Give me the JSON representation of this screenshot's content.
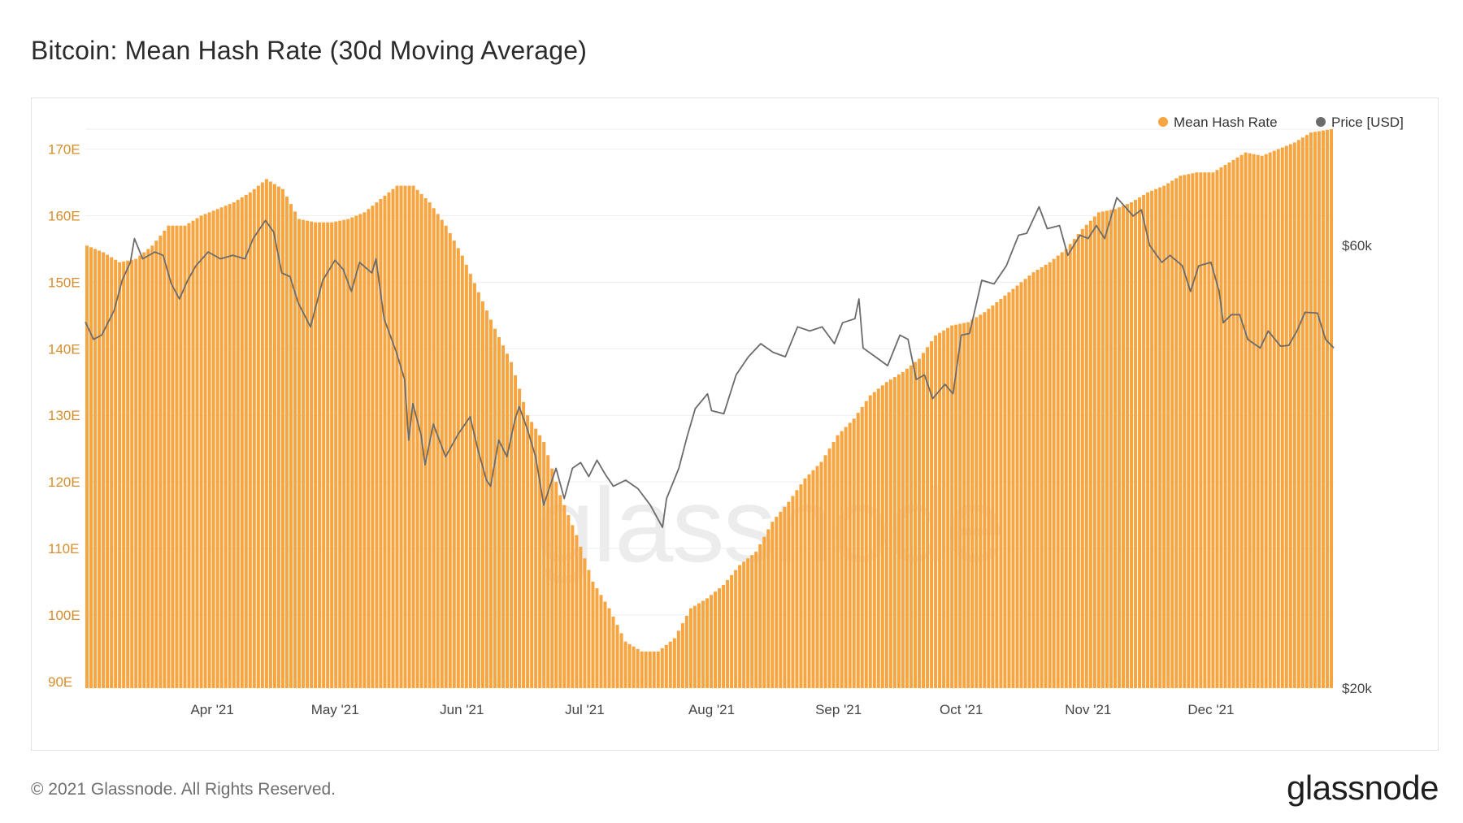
{
  "title": "Bitcoin: Mean Hash Rate (30d Moving Average)",
  "footer": {
    "copyright": "© 2021 Glassnode. All Rights Reserved.",
    "logo": "glassnode"
  },
  "watermark": "glassnode",
  "colors": {
    "hash_rate": "#F7A541",
    "price": "#6b6b6b",
    "left_axis_text": "#D88D2B",
    "right_axis_text": "#444444",
    "grid": "#eeeeee"
  },
  "chart_data": {
    "type": "bar",
    "title": "Bitcoin: Mean Hash Rate (30d Moving Average)",
    "x_range": [
      "2021-03-01",
      "2021-12-31"
    ],
    "x_ticks": [
      {
        "date": "2021-04-01",
        "label": "Apr '21"
      },
      {
        "date": "2021-05-01",
        "label": "May '21"
      },
      {
        "date": "2021-06-01",
        "label": "Jun '21"
      },
      {
        "date": "2021-07-01",
        "label": "Jul '21"
      },
      {
        "date": "2021-08-01",
        "label": "Aug '21"
      },
      {
        "date": "2021-09-01",
        "label": "Sep '21"
      },
      {
        "date": "2021-10-01",
        "label": "Oct '21"
      },
      {
        "date": "2021-11-01",
        "label": "Nov '21"
      },
      {
        "date": "2021-12-01",
        "label": "Dec '21"
      }
    ],
    "left_axis": {
      "unit": "E",
      "ylim": [
        89,
        173
      ],
      "ticks": [
        {
          "value": 90,
          "label": "90E"
        },
        {
          "value": 100,
          "label": "100E"
        },
        {
          "value": 110,
          "label": "110E"
        },
        {
          "value": 120,
          "label": "120E"
        },
        {
          "value": 130,
          "label": "130E"
        },
        {
          "value": 140,
          "label": "140E"
        },
        {
          "value": 150,
          "label": "150E"
        },
        {
          "value": 160,
          "label": "160E"
        },
        {
          "value": 170,
          "label": "170E"
        }
      ]
    },
    "right_axis": {
      "scale": "log",
      "ylim": [
        20000,
        80000
      ],
      "ticks": [
        {
          "value": 20000,
          "label": "$20k"
        },
        {
          "value": 60000,
          "label": "$60k"
        }
      ]
    },
    "legend": {
      "position": "top-right",
      "items": [
        {
          "label": "Mean Hash Rate",
          "color": "#F7A541"
        },
        {
          "label": "Price [USD]",
          "color": "#6b6b6b"
        }
      ]
    },
    "series": [
      {
        "name": "Mean Hash Rate",
        "type": "bar",
        "axis": "left",
        "points": [
          [
            "2021-03-01",
            155.5
          ],
          [
            "2021-03-05",
            154.5
          ],
          [
            "2021-03-09",
            153.0
          ],
          [
            "2021-03-13",
            153.5
          ],
          [
            "2021-03-17",
            155.5
          ],
          [
            "2021-03-21",
            158.5
          ],
          [
            "2021-03-25",
            158.5
          ],
          [
            "2021-03-29",
            160.0
          ],
          [
            "2021-04-02",
            161.0
          ],
          [
            "2021-04-06",
            162.0
          ],
          [
            "2021-04-10",
            163.5
          ],
          [
            "2021-04-14",
            165.5
          ],
          [
            "2021-04-18",
            164.0
          ],
          [
            "2021-04-22",
            159.5
          ],
          [
            "2021-04-26",
            159.0
          ],
          [
            "2021-04-30",
            159.0
          ],
          [
            "2021-05-04",
            159.5
          ],
          [
            "2021-05-08",
            160.5
          ],
          [
            "2021-05-12",
            162.5
          ],
          [
            "2021-05-16",
            164.5
          ],
          [
            "2021-05-20",
            164.5
          ],
          [
            "2021-05-24",
            162.0
          ],
          [
            "2021-05-28",
            158.5
          ],
          [
            "2021-06-01",
            154.0
          ],
          [
            "2021-06-05",
            148.5
          ],
          [
            "2021-06-09",
            143.0
          ],
          [
            "2021-06-13",
            138.0
          ],
          [
            "2021-06-17",
            130.0
          ],
          [
            "2021-06-21",
            126.0
          ],
          [
            "2021-06-25",
            118.0
          ],
          [
            "2021-06-29",
            112.0
          ],
          [
            "2021-07-03",
            105.0
          ],
          [
            "2021-07-07",
            101.0
          ],
          [
            "2021-07-11",
            96.0
          ],
          [
            "2021-07-15",
            94.5
          ],
          [
            "2021-07-19",
            94.5
          ],
          [
            "2021-07-23",
            96.5
          ],
          [
            "2021-07-27",
            101.0
          ],
          [
            "2021-07-31",
            102.5
          ],
          [
            "2021-08-04",
            104.5
          ],
          [
            "2021-08-08",
            107.5
          ],
          [
            "2021-08-12",
            109.5
          ],
          [
            "2021-08-16",
            114.0
          ],
          [
            "2021-08-20",
            117.0
          ],
          [
            "2021-08-24",
            120.5
          ],
          [
            "2021-08-28",
            123.0
          ],
          [
            "2021-09-01",
            127.0
          ],
          [
            "2021-09-05",
            129.5
          ],
          [
            "2021-09-09",
            133.0
          ],
          [
            "2021-09-13",
            135.0
          ],
          [
            "2021-09-17",
            136.5
          ],
          [
            "2021-09-21",
            138.5
          ],
          [
            "2021-09-25",
            142.0
          ],
          [
            "2021-09-29",
            143.5
          ],
          [
            "2021-10-03",
            144.0
          ],
          [
            "2021-10-07",
            145.5
          ],
          [
            "2021-10-11",
            147.5
          ],
          [
            "2021-10-15",
            149.5
          ],
          [
            "2021-10-19",
            151.5
          ],
          [
            "2021-10-23",
            153.0
          ],
          [
            "2021-10-27",
            155.0
          ],
          [
            "2021-10-31",
            158.0
          ],
          [
            "2021-11-04",
            160.5
          ],
          [
            "2021-11-08",
            161.0
          ],
          [
            "2021-11-12",
            162.0
          ],
          [
            "2021-11-16",
            163.5
          ],
          [
            "2021-11-20",
            164.5
          ],
          [
            "2021-11-24",
            166.0
          ],
          [
            "2021-11-28",
            166.5
          ],
          [
            "2021-12-02",
            166.5
          ],
          [
            "2021-12-06",
            168.0
          ],
          [
            "2021-12-10",
            169.5
          ],
          [
            "2021-12-14",
            169.0
          ],
          [
            "2021-12-18",
            170.0
          ],
          [
            "2021-12-22",
            171.0
          ],
          [
            "2021-12-26",
            172.5
          ],
          [
            "2021-12-31",
            173.0
          ]
        ]
      },
      {
        "name": "Price [USD]",
        "type": "line",
        "axis": "right",
        "points": [
          [
            "2021-03-01",
            49600
          ],
          [
            "2021-03-03",
            47500
          ],
          [
            "2021-03-05",
            48000
          ],
          [
            "2021-03-08",
            51000
          ],
          [
            "2021-03-10",
            55000
          ],
          [
            "2021-03-12",
            57500
          ],
          [
            "2021-03-13",
            61000
          ],
          [
            "2021-03-15",
            58000
          ],
          [
            "2021-03-18",
            59000
          ],
          [
            "2021-03-20",
            58500
          ],
          [
            "2021-03-22",
            54500
          ],
          [
            "2021-03-24",
            52500
          ],
          [
            "2021-03-26",
            55000
          ],
          [
            "2021-03-28",
            57000
          ],
          [
            "2021-03-31",
            59000
          ],
          [
            "2021-04-03",
            58000
          ],
          [
            "2021-04-06",
            58500
          ],
          [
            "2021-04-09",
            58000
          ],
          [
            "2021-04-11",
            61000
          ],
          [
            "2021-04-14",
            63800
          ],
          [
            "2021-04-16",
            62000
          ],
          [
            "2021-04-18",
            56000
          ],
          [
            "2021-04-20",
            55500
          ],
          [
            "2021-04-22",
            52000
          ],
          [
            "2021-04-25",
            49000
          ],
          [
            "2021-04-28",
            55000
          ],
          [
            "2021-05-01",
            57800
          ],
          [
            "2021-05-03",
            56500
          ],
          [
            "2021-05-05",
            53500
          ],
          [
            "2021-05-07",
            57500
          ],
          [
            "2021-05-10",
            56000
          ],
          [
            "2021-05-11",
            58000
          ],
          [
            "2021-05-13",
            50000
          ],
          [
            "2021-05-16",
            46000
          ],
          [
            "2021-05-18",
            43000
          ],
          [
            "2021-05-19",
            37000
          ],
          [
            "2021-05-20",
            40500
          ],
          [
            "2021-05-22",
            37500
          ],
          [
            "2021-05-23",
            34800
          ],
          [
            "2021-05-25",
            38500
          ],
          [
            "2021-05-28",
            35500
          ],
          [
            "2021-05-31",
            37500
          ],
          [
            "2021-06-03",
            39200
          ],
          [
            "2021-06-05",
            36000
          ],
          [
            "2021-06-07",
            33500
          ],
          [
            "2021-06-08",
            33000
          ],
          [
            "2021-06-10",
            37000
          ],
          [
            "2021-06-12",
            35500
          ],
          [
            "2021-06-14",
            39000
          ],
          [
            "2021-06-15",
            40200
          ],
          [
            "2021-06-17",
            38000
          ],
          [
            "2021-06-19",
            35500
          ],
          [
            "2021-06-21",
            31500
          ],
          [
            "2021-06-22",
            32500
          ],
          [
            "2021-06-24",
            34500
          ],
          [
            "2021-06-26",
            32000
          ],
          [
            "2021-06-28",
            34500
          ],
          [
            "2021-06-30",
            35000
          ],
          [
            "2021-07-02",
            33800
          ],
          [
            "2021-07-04",
            35200
          ],
          [
            "2021-07-06",
            34000
          ],
          [
            "2021-07-08",
            33000
          ],
          [
            "2021-07-11",
            33500
          ],
          [
            "2021-07-14",
            32800
          ],
          [
            "2021-07-17",
            31500
          ],
          [
            "2021-07-20",
            29800
          ],
          [
            "2021-07-21",
            32000
          ],
          [
            "2021-07-24",
            34500
          ],
          [
            "2021-07-26",
            37300
          ],
          [
            "2021-07-28",
            40000
          ],
          [
            "2021-07-31",
            41500
          ],
          [
            "2021-08-01",
            39800
          ],
          [
            "2021-08-04",
            39500
          ],
          [
            "2021-08-07",
            43500
          ],
          [
            "2021-08-10",
            45500
          ],
          [
            "2021-08-13",
            47000
          ],
          [
            "2021-08-16",
            46000
          ],
          [
            "2021-08-19",
            45500
          ],
          [
            "2021-08-22",
            49000
          ],
          [
            "2021-08-25",
            48500
          ],
          [
            "2021-08-28",
            49000
          ],
          [
            "2021-08-31",
            47000
          ],
          [
            "2021-09-02",
            49500
          ],
          [
            "2021-09-05",
            50000
          ],
          [
            "2021-09-06",
            52500
          ],
          [
            "2021-09-07",
            46500
          ],
          [
            "2021-09-10",
            45500
          ],
          [
            "2021-09-13",
            44500
          ],
          [
            "2021-09-16",
            48000
          ],
          [
            "2021-09-18",
            47500
          ],
          [
            "2021-09-20",
            43000
          ],
          [
            "2021-09-22",
            43500
          ],
          [
            "2021-09-24",
            41000
          ],
          [
            "2021-09-27",
            42500
          ],
          [
            "2021-09-29",
            41500
          ],
          [
            "2021-10-01",
            48000
          ],
          [
            "2021-10-03",
            48200
          ],
          [
            "2021-10-06",
            55000
          ],
          [
            "2021-10-09",
            54500
          ],
          [
            "2021-10-12",
            57000
          ],
          [
            "2021-10-15",
            61500
          ],
          [
            "2021-10-17",
            61800
          ],
          [
            "2021-10-20",
            66000
          ],
          [
            "2021-10-22",
            62500
          ],
          [
            "2021-10-25",
            63000
          ],
          [
            "2021-10-27",
            58500
          ],
          [
            "2021-10-30",
            61500
          ],
          [
            "2021-11-01",
            61000
          ],
          [
            "2021-11-03",
            63000
          ],
          [
            "2021-11-05",
            61000
          ],
          [
            "2021-11-08",
            67500
          ],
          [
            "2021-11-10",
            66000
          ],
          [
            "2021-11-12",
            64500
          ],
          [
            "2021-11-14",
            65500
          ],
          [
            "2021-11-16",
            60000
          ],
          [
            "2021-11-19",
            57500
          ],
          [
            "2021-11-21",
            58500
          ],
          [
            "2021-11-24",
            57000
          ],
          [
            "2021-11-26",
            53500
          ],
          [
            "2021-11-28",
            57000
          ],
          [
            "2021-12-01",
            57500
          ],
          [
            "2021-12-03",
            53500
          ],
          [
            "2021-12-04",
            49500
          ],
          [
            "2021-12-06",
            50500
          ],
          [
            "2021-12-08",
            50500
          ],
          [
            "2021-12-10",
            47500
          ],
          [
            "2021-12-13",
            46500
          ],
          [
            "2021-12-15",
            48500
          ],
          [
            "2021-12-18",
            46700
          ],
          [
            "2021-12-20",
            46800
          ],
          [
            "2021-12-22",
            48500
          ],
          [
            "2021-12-24",
            50800
          ],
          [
            "2021-12-27",
            50700
          ],
          [
            "2021-12-29",
            47500
          ],
          [
            "2021-12-31",
            46500
          ]
        ]
      }
    ]
  }
}
